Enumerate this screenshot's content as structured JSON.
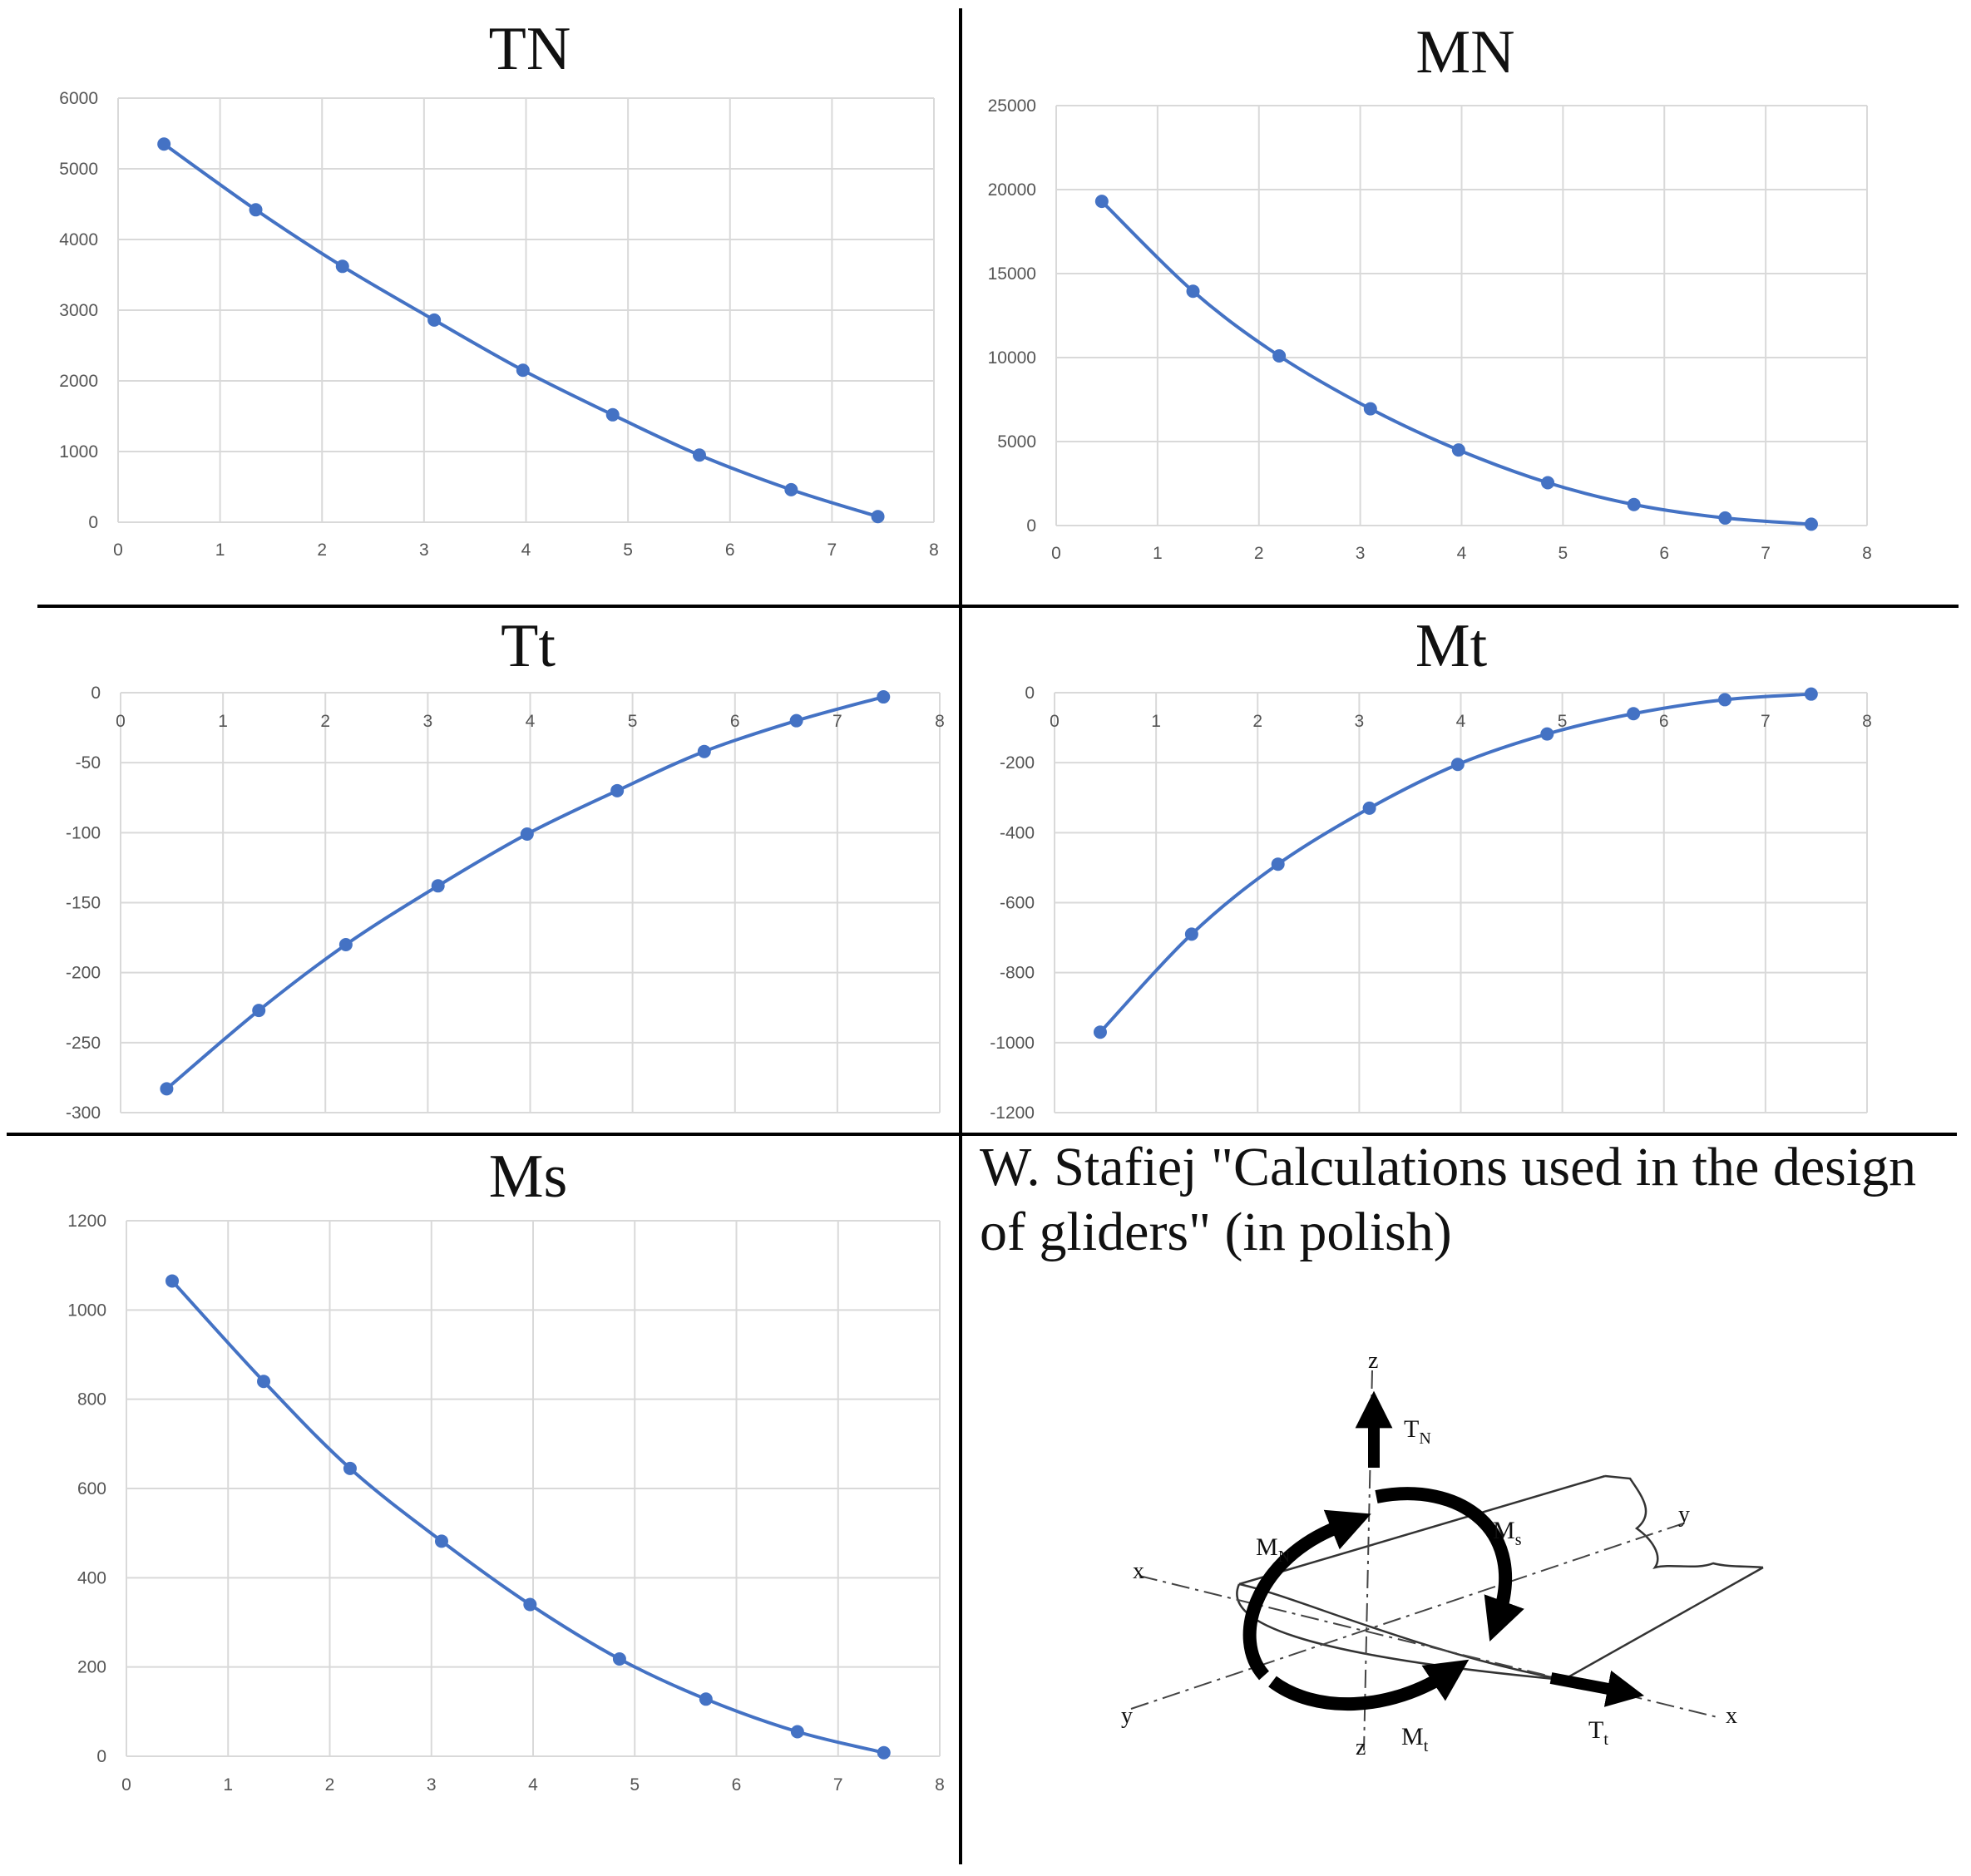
{
  "chart_data": [
    {
      "type": "line",
      "title": "TN",
      "x": [
        0.45,
        1.35,
        2.2,
        3.1,
        3.97,
        4.85,
        5.7,
        6.6,
        7.45
      ],
      "values": [
        5350,
        4420,
        3620,
        2860,
        2150,
        1520,
        950,
        460,
        80
      ],
      "xlim": [
        0,
        8
      ],
      "ylim": [
        0,
        6000
      ],
      "xticks": [
        "0",
        "1",
        "2",
        "3",
        "4",
        "5",
        "6",
        "7",
        "8"
      ],
      "yticks": [
        "0",
        "1000",
        "2000",
        "3000",
        "4000",
        "5000",
        "6000"
      ],
      "grid": true,
      "line_color": "#4472c4"
    },
    {
      "type": "line",
      "title": "MN",
      "x": [
        0.45,
        1.35,
        2.2,
        3.1,
        3.97,
        4.85,
        5.7,
        6.6,
        7.45
      ],
      "values": [
        19300,
        13950,
        10100,
        6950,
        4500,
        2550,
        1250,
        450,
        80
      ],
      "xlim": [
        0,
        8
      ],
      "ylim": [
        0,
        25000
      ],
      "xticks": [
        "0",
        "1",
        "2",
        "3",
        "4",
        "5",
        "6",
        "7",
        "8"
      ],
      "yticks": [
        "0",
        "5000",
        "10000",
        "15000",
        "20000",
        "25000"
      ],
      "grid": true,
      "line_color": "#4472c4"
    },
    {
      "type": "line",
      "title": "Tt",
      "x": [
        0.45,
        1.35,
        2.2,
        3.1,
        3.97,
        4.85,
        5.7,
        6.6,
        7.45
      ],
      "values": [
        -283,
        -227,
        -180,
        -138,
        -101,
        -70,
        -42,
        -20,
        -3
      ],
      "xlim": [
        0,
        8
      ],
      "ylim": [
        -300,
        0
      ],
      "xticks": [
        "0",
        "1",
        "2",
        "3",
        "4",
        "5",
        "6",
        "7",
        "8"
      ],
      "yticks": [
        "0",
        "-50",
        "-100",
        "-150",
        "-200",
        "-250",
        "-300"
      ],
      "grid": true,
      "line_color": "#4472c4"
    },
    {
      "type": "line",
      "title": "Mt",
      "x": [
        0.45,
        1.35,
        2.2,
        3.1,
        3.97,
        4.85,
        5.7,
        6.6,
        7.45
      ],
      "values": [
        -970,
        -690,
        -490,
        -330,
        -205,
        -118,
        -60,
        -20,
        -4
      ],
      "xlim": [
        0,
        8
      ],
      "ylim": [
        -1200,
        0
      ],
      "xticks": [
        "0",
        "1",
        "2",
        "3",
        "4",
        "5",
        "6",
        "7",
        "8"
      ],
      "yticks": [
        "0",
        "-200",
        "-400",
        "-600",
        "-800",
        "-1000",
        "-1200"
      ],
      "grid": true,
      "line_color": "#4472c4"
    },
    {
      "type": "line",
      "title": "Ms",
      "x": [
        0.45,
        1.35,
        2.2,
        3.1,
        3.97,
        4.85,
        5.7,
        6.6,
        7.45
      ],
      "values": [
        1065,
        840,
        645,
        482,
        340,
        218,
        128,
        55,
        8
      ],
      "xlim": [
        0,
        8
      ],
      "ylim": [
        0,
        1200
      ],
      "xticks": [
        "0",
        "1",
        "2",
        "3",
        "4",
        "5",
        "6",
        "7",
        "8"
      ],
      "yticks": [
        "0",
        "200",
        "400",
        "600",
        "800",
        "1000",
        "1200"
      ],
      "grid": true,
      "line_color": "#4472c4"
    }
  ],
  "citation": "W. Stafiej \"Calculations used in the design of gliders\" (in polish)",
  "diagram": {
    "axis_z": "z",
    "axis_y": "y",
    "axis_x": "x",
    "label_TN": "T",
    "label_TN_sub": "N",
    "label_MN": "M",
    "label_MN_sub": "N",
    "label_Ms": "M",
    "label_Ms_sub": "s",
    "label_Mt": "M",
    "label_Mt_sub": "t",
    "label_Tt": "T",
    "label_Tt_sub": "t"
  }
}
